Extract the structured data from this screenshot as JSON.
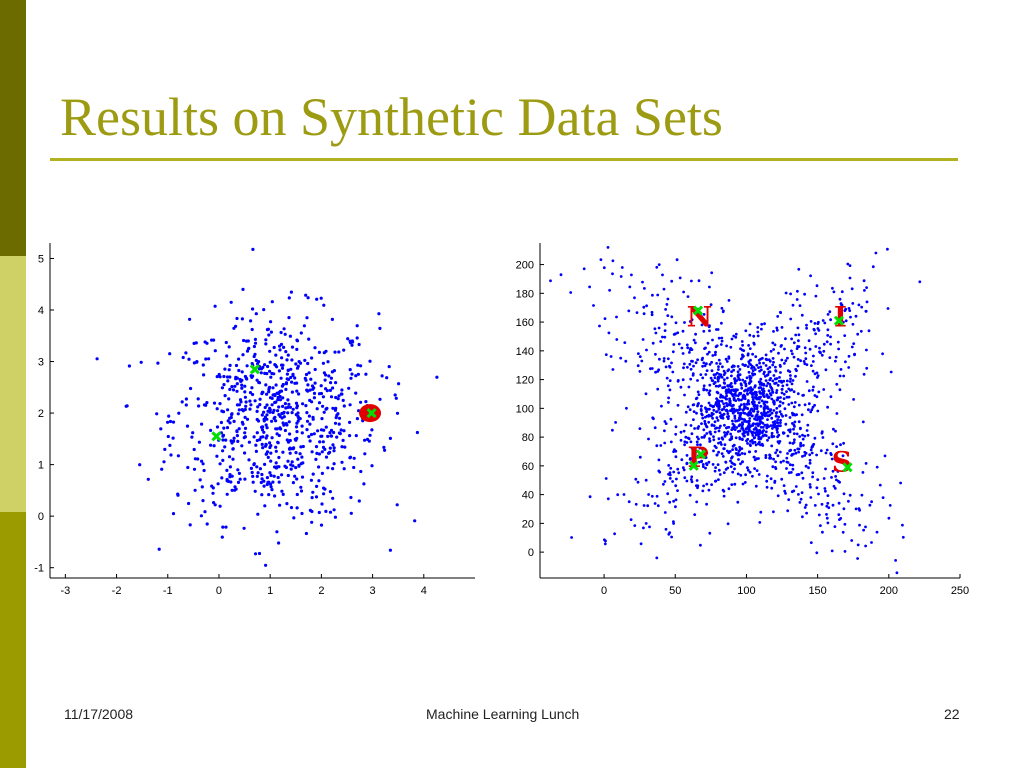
{
  "slide": {
    "title": "Results on Synthetic Data Sets",
    "footer_date": "11/17/2008",
    "footer_center": "Machine Learning Lunch",
    "slide_number": "22"
  },
  "colors": {
    "title": "#9c9b12",
    "rule": "#b2b120",
    "sidebar": [
      "#6b6b00",
      "#cfd066",
      "#9b9b00"
    ],
    "points": "#0000ff",
    "green_marker": "#00e000",
    "red_marker": "#e00000"
  },
  "chart_data": [
    {
      "type": "scatter",
      "xlim": [
        -3.3,
        5.0
      ],
      "ylim": [
        -1.2,
        5.3
      ],
      "xticks": [
        -3,
        -2,
        -1,
        0,
        1,
        2,
        3,
        4
      ],
      "yticks": [
        -1,
        0,
        1,
        2,
        3,
        4,
        5
      ],
      "xticklabels": [
        "-3",
        "-2",
        "-1",
        "0",
        "1",
        "2",
        "3",
        "4"
      ],
      "yticklabels": [
        "-1",
        "0",
        "1",
        "2",
        "3",
        "4",
        "5"
      ],
      "distribution": "single gaussian blob, center about (1.1, 1.9), spread about 1.0",
      "point_count": 800,
      "highlights": [
        {
          "type": "green-x",
          "x": 0.7,
          "y": 2.85
        },
        {
          "type": "green-x",
          "x": -0.05,
          "y": 1.55
        },
        {
          "type": "red-cluster",
          "x": 2.95,
          "y": 2.0
        },
        {
          "type": "green-x",
          "x": 2.98,
          "y": 2.0
        }
      ]
    },
    {
      "type": "scatter",
      "xlim": [
        -45,
        250
      ],
      "ylim": [
        -18,
        215
      ],
      "xticks": [
        0,
        50,
        100,
        150,
        200,
        250
      ],
      "yticks": [
        0,
        20,
        40,
        60,
        80,
        100,
        120,
        140,
        160,
        180,
        200
      ],
      "xticklabels": [
        "0",
        "50",
        "100",
        "150",
        "200",
        "250"
      ],
      "yticklabels": [
        "0",
        "20",
        "40",
        "60",
        "80",
        "100",
        "120",
        "140",
        "160",
        "180",
        "200"
      ],
      "distribution": "X-shaped: two crossing diagonal point bands centered at (100, 100)",
      "point_count": 1400,
      "highlights": [
        {
          "type": "red-letter",
          "label": "N",
          "x": 67,
          "y": 164
        },
        {
          "type": "red-letter",
          "label": "I",
          "x": 166,
          "y": 164
        },
        {
          "type": "red-letter",
          "label": "P",
          "x": 66,
          "y": 66
        },
        {
          "type": "red-letter",
          "label": "S",
          "x": 167,
          "y": 63
        },
        {
          "type": "green-x",
          "x": 66,
          "y": 168
        },
        {
          "type": "green-x",
          "x": 165,
          "y": 161
        },
        {
          "type": "green-x",
          "x": 68,
          "y": 68
        },
        {
          "type": "green-x",
          "x": 63,
          "y": 60
        },
        {
          "type": "green-x",
          "x": 171,
          "y": 59
        }
      ]
    }
  ]
}
